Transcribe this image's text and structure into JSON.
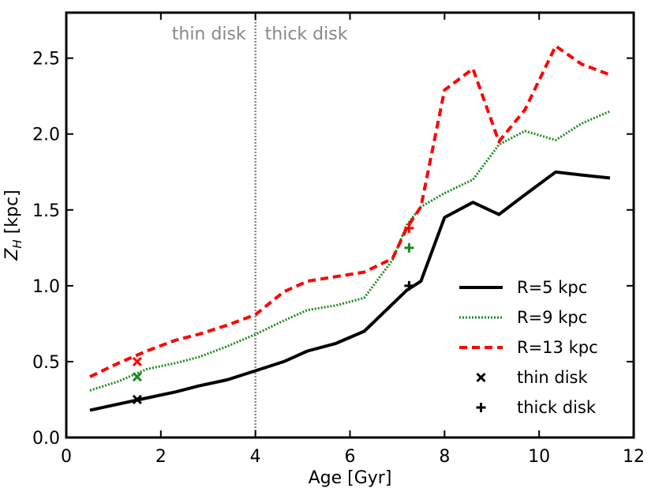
{
  "chart_data": {
    "type": "line",
    "xlabel": "Age [Gyr]",
    "ylabel": "Z_H [kpc]",
    "xlim": [
      0,
      12
    ],
    "ylim": [
      0,
      2.8
    ],
    "xticks": [
      0,
      2,
      4,
      6,
      8,
      10,
      12
    ],
    "yticks": [
      0.0,
      0.5,
      1.0,
      1.5,
      2.0,
      2.5
    ],
    "xtick_labels": [
      "0",
      "2",
      "4",
      "6",
      "8",
      "10",
      "12"
    ],
    "ytick_labels": [
      "0.0",
      "0.5",
      "1.0",
      "1.5",
      "2.0",
      "2.5"
    ],
    "grid": false,
    "legend_position": "lower-right",
    "divider": {
      "x": 4,
      "color": "#888888",
      "style": "dotted"
    },
    "region_labels": {
      "left": "thin disk",
      "right": "thick disk"
    },
    "series": [
      {
        "name": "R=5 kpc",
        "color": "#000000",
        "style": "solid",
        "x": [
          0.5,
          1.1,
          1.7,
          2.3,
          2.8,
          3.4,
          4.0,
          4.6,
          5.1,
          5.7,
          6.3,
          6.9,
          7.2,
          7.5,
          8.0,
          8.6,
          9.15,
          9.7,
          10.35,
          10.9,
          11.5
        ],
        "y": [
          0.18,
          0.22,
          0.26,
          0.3,
          0.34,
          0.38,
          0.44,
          0.5,
          0.57,
          0.62,
          0.7,
          0.88,
          0.97,
          1.03,
          1.45,
          1.55,
          1.47,
          1.6,
          1.75,
          1.73,
          1.71
        ]
      },
      {
        "name": "R=9 kpc",
        "color": "#1a8a1a",
        "style": "dotted",
        "x": [
          0.5,
          1.1,
          1.7,
          2.3,
          2.8,
          3.4,
          4.0,
          4.6,
          5.1,
          5.7,
          6.3,
          6.9,
          7.2,
          7.5,
          8.0,
          8.6,
          9.15,
          9.7,
          10.35,
          10.9,
          11.5
        ],
        "y": [
          0.31,
          0.37,
          0.45,
          0.49,
          0.53,
          0.6,
          0.68,
          0.77,
          0.84,
          0.87,
          0.92,
          1.17,
          1.4,
          1.52,
          1.61,
          1.7,
          1.93,
          2.02,
          1.96,
          2.07,
          2.15
        ]
      },
      {
        "name": "R=13 kpc",
        "color": "#ff0000",
        "style": "dashed",
        "x": [
          0.5,
          1.1,
          1.7,
          2.3,
          2.8,
          3.4,
          4.0,
          4.6,
          5.1,
          5.7,
          6.3,
          6.9,
          7.2,
          7.5,
          8.0,
          8.6,
          9.15,
          9.7,
          10.35,
          10.9,
          11.5
        ],
        "y": [
          0.4,
          0.49,
          0.57,
          0.64,
          0.68,
          0.74,
          0.81,
          0.96,
          1.03,
          1.06,
          1.09,
          1.18,
          1.38,
          1.52,
          2.29,
          2.43,
          1.95,
          2.16,
          2.58,
          2.46,
          2.39
        ]
      }
    ],
    "markers": [
      {
        "name": "thin disk",
        "symbol": "x",
        "x": 1.5,
        "y": 0.25,
        "color": "#000000"
      },
      {
        "name": "thin disk",
        "symbol": "x",
        "x": 1.5,
        "y": 0.4,
        "color": "#1a8a1a"
      },
      {
        "name": "thin disk",
        "symbol": "x",
        "x": 1.5,
        "y": 0.5,
        "color": "#ff0000"
      },
      {
        "name": "thick disk",
        "symbol": "+",
        "x": 7.25,
        "y": 1.0,
        "color": "#000000"
      },
      {
        "name": "thick disk",
        "symbol": "+",
        "x": 7.25,
        "y": 1.25,
        "color": "#1a8a1a"
      },
      {
        "name": "thick disk",
        "symbol": "+",
        "x": 7.25,
        "y": 1.38,
        "color": "#ff0000"
      }
    ],
    "legend": [
      {
        "label": "R=5 kpc",
        "kind": "line",
        "color": "#000000",
        "style": "solid"
      },
      {
        "label": "R=9 kpc",
        "kind": "line",
        "color": "#1a8a1a",
        "style": "dotted"
      },
      {
        "label": "R=13 kpc",
        "kind": "line",
        "color": "#ff0000",
        "style": "dashed"
      },
      {
        "label": "thin disk",
        "kind": "marker",
        "symbol": "x",
        "color": "#000000"
      },
      {
        "label": "thick disk",
        "kind": "marker",
        "symbol": "+",
        "color": "#000000"
      }
    ]
  }
}
